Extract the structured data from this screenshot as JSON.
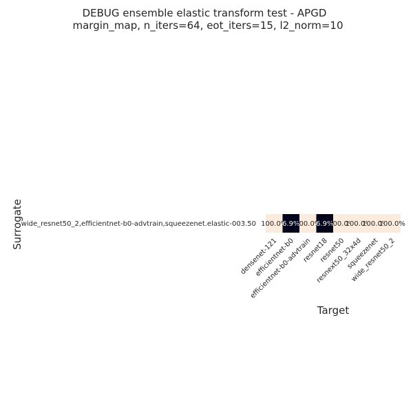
{
  "chart_data": {
    "type": "heatmap",
    "title": "DEBUG ensemble elastic transform test - APGD",
    "subtitle": "margin_map, n_iters=64, eot_iters=15, l2_norm=10",
    "xlabel": "Target",
    "ylabel": "Surrogate",
    "x_categories": [
      "densenet-121",
      "efficientnet-b0",
      "efficientnet-b0-advtrain",
      "resnet18",
      "resnet50",
      "resnext50_32x4d",
      "squeezenet",
      "wide_resnet50_2"
    ],
    "y_categories": [
      "wide_resnet50_2,efficientnet-b0-advtrain,squeezenet.elastic-003.50"
    ],
    "values": [
      [
        100.0,
        6.9,
        100.0,
        6.9,
        100.0,
        100.0,
        100.0,
        100.0
      ]
    ],
    "cell_labels": [
      [
        "100.0%",
        "6.9%",
        "100.0%",
        "6.9%",
        "100.0%",
        "100.0%",
        "100.0%",
        "100.0%"
      ]
    ],
    "colormap": {
      "low": "#03051a",
      "high": "#faebdd"
    },
    "vmin": 6.9,
    "vmax": 100.0,
    "grid": false,
    "legend": "none"
  }
}
